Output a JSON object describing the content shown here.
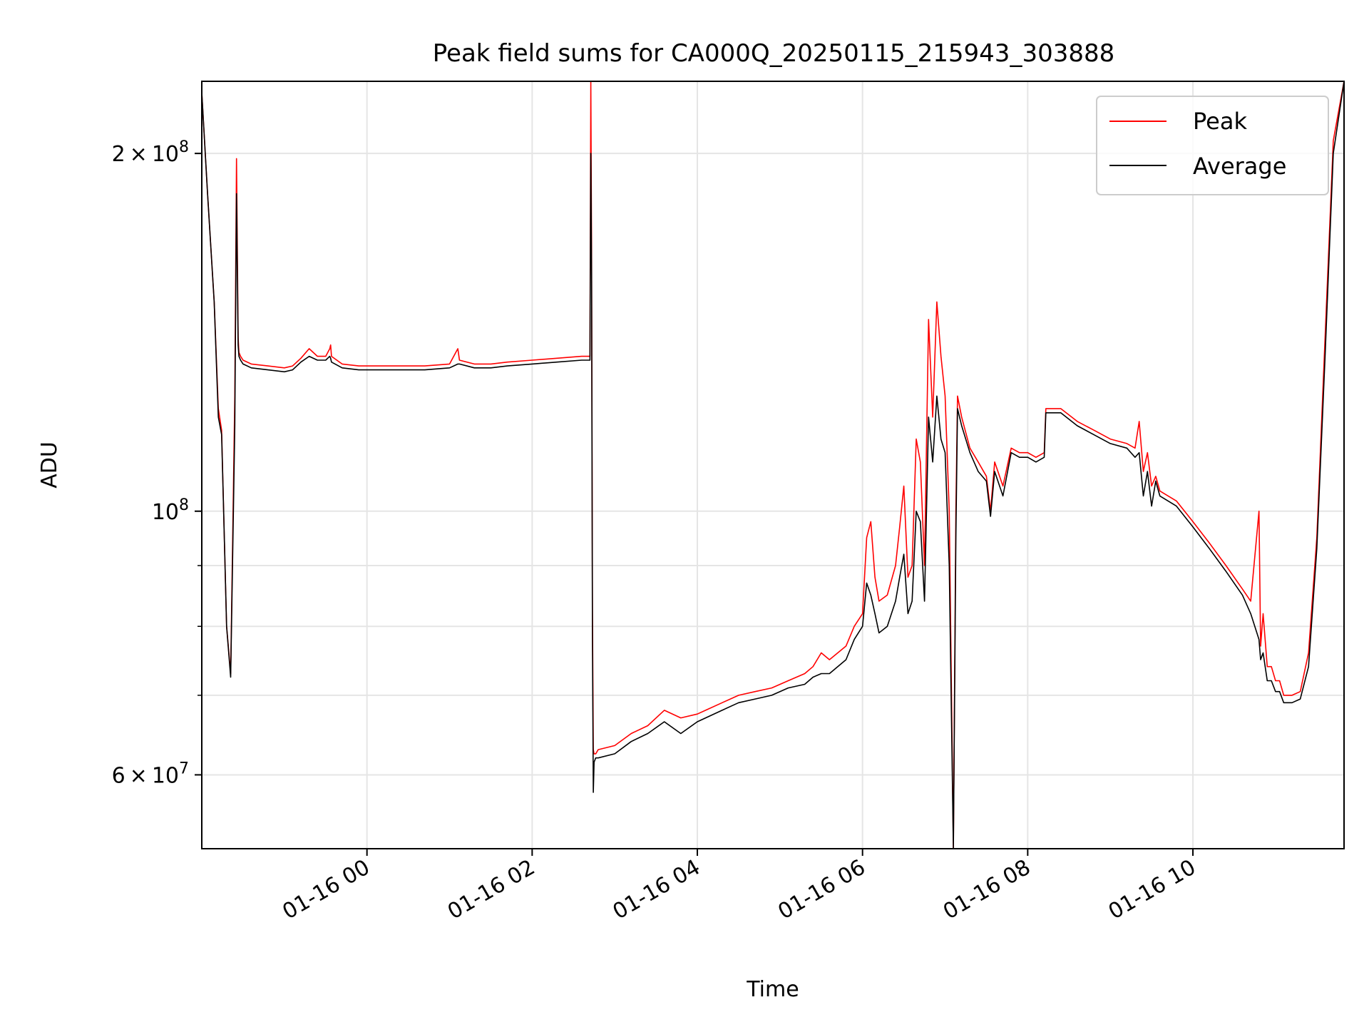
{
  "chart_data": {
    "type": "line",
    "title": "Peak field sums for CA000Q_20250115_215943_303888",
    "xlabel": "Time",
    "ylabel": "ADU",
    "x_unit": "hours relative to 2025-01-16 00:00",
    "xlim": [
      -2.0,
      11.83
    ],
    "ylim": [
      52000000,
      230000000
    ],
    "y_scale": "log",
    "grid": true,
    "legend": {
      "placement": "upper right"
    },
    "x_ticks": [
      {
        "value": 0,
        "label": "01-16 00"
      },
      {
        "value": 2,
        "label": "01-16 02"
      },
      {
        "value": 4,
        "label": "01-16 04"
      },
      {
        "value": 6,
        "label": "01-16 06"
      },
      {
        "value": 8,
        "label": "01-16 08"
      },
      {
        "value": 10,
        "label": "01-16 10"
      }
    ],
    "y_major_ticks": [
      {
        "value": 60000000,
        "mantissa": "6",
        "base": "10",
        "exp": "7"
      },
      {
        "value": 100000000,
        "mantissa": "",
        "base": "10",
        "exp": "8"
      },
      {
        "value": 200000000,
        "mantissa": "2",
        "base": "10",
        "exp": "8"
      }
    ],
    "y_minor_ticks": [
      70000000,
      80000000,
      90000000
    ],
    "series": [
      {
        "name": "Peak",
        "color": "#ff0000",
        "x": [
          -2.0,
          -1.93,
          -1.85,
          -1.8,
          -1.76,
          -1.74,
          -1.7,
          -1.65,
          -1.6,
          -1.58,
          -1.56,
          -1.55,
          -1.53,
          -1.5,
          -1.4,
          -1.2,
          -1.0,
          -0.9,
          -0.8,
          -0.7,
          -0.6,
          -0.5,
          -0.45,
          -0.44,
          -0.43,
          -0.3,
          -0.1,
          0.0,
          0.2,
          0.5,
          0.7,
          1.0,
          1.1,
          1.12,
          1.3,
          1.5,
          1.7,
          2.0,
          2.3,
          2.6,
          2.7,
          2.71,
          2.72,
          2.73,
          2.74,
          2.75,
          2.77,
          2.8,
          3.0,
          3.2,
          3.4,
          3.6,
          3.8,
          4.0,
          4.1,
          4.3,
          4.5,
          4.7,
          4.9,
          5.1,
          5.3,
          5.4,
          5.5,
          5.6,
          5.8,
          5.9,
          6.0,
          6.05,
          6.1,
          6.15,
          6.2,
          6.3,
          6.4,
          6.45,
          6.5,
          6.55,
          6.6,
          6.65,
          6.7,
          6.75,
          6.8,
          6.85,
          6.9,
          6.95,
          7.0,
          7.05,
          7.1,
          7.13,
          7.15,
          7.2,
          7.3,
          7.4,
          7.5,
          7.55,
          7.6,
          7.7,
          7.8,
          7.9,
          8.0,
          8.1,
          8.2,
          8.22,
          8.4,
          8.6,
          8.8,
          9.0,
          9.2,
          9.3,
          9.35,
          9.4,
          9.45,
          9.5,
          9.55,
          9.6,
          9.8,
          10.0,
          10.2,
          10.4,
          10.6,
          10.7,
          10.8,
          10.82,
          10.85,
          10.9,
          10.95,
          11.0,
          11.05,
          11.1,
          11.2,
          11.3,
          11.4,
          11.5,
          11.6,
          11.7,
          11.83
        ],
        "y": [
          225000000,
          185000000,
          150000000,
          122000000,
          117000000,
          103000000,
          80000000,
          73000000,
          125000000,
          198000000,
          140000000,
          136000000,
          135000000,
          134000000,
          133000000,
          132500000,
          132000000,
          132500000,
          134500000,
          137000000,
          135000000,
          135000000,
          137000000,
          138000000,
          135000000,
          133000000,
          132500000,
          132500000,
          132500000,
          132500000,
          132500000,
          133000000,
          137000000,
          134000000,
          133000000,
          133000000,
          133500000,
          134000000,
          134500000,
          135000000,
          135000000,
          230000000,
          165000000,
          82000000,
          63000000,
          62500000,
          62500000,
          63000000,
          63500000,
          65000000,
          66000000,
          68000000,
          67000000,
          67500000,
          68000000,
          69000000,
          70000000,
          70500000,
          71000000,
          72000000,
          73000000,
          74000000,
          76000000,
          75000000,
          77000000,
          80000000,
          82000000,
          95000000,
          98000000,
          88000000,
          84000000,
          85000000,
          90000000,
          97000000,
          105000000,
          88000000,
          90000000,
          115000000,
          110000000,
          90000000,
          145000000,
          120000000,
          150000000,
          135000000,
          125000000,
          100000000,
          52000000,
          100000000,
          125000000,
          120000000,
          113000000,
          110000000,
          107000000,
          100000000,
          110000000,
          105000000,
          113000000,
          112000000,
          112000000,
          111000000,
          112000000,
          122000000,
          122000000,
          119000000,
          117000000,
          115000000,
          114000000,
          113000000,
          119000000,
          108000000,
          112000000,
          105000000,
          107000000,
          104000000,
          102000000,
          98000000,
          94000000,
          90000000,
          86000000,
          84000000,
          100000000,
          77000000,
          82000000,
          74000000,
          74000000,
          72000000,
          72000000,
          70000000,
          70000000,
          70500000,
          76000000,
          95000000,
          140000000,
          205000000,
          230000000
        ]
      },
      {
        "name": "Average",
        "color": "#000000",
        "x": [
          -2.0,
          -1.93,
          -1.85,
          -1.8,
          -1.76,
          -1.74,
          -1.7,
          -1.65,
          -1.6,
          -1.58,
          -1.56,
          -1.55,
          -1.53,
          -1.5,
          -1.4,
          -1.2,
          -1.0,
          -0.9,
          -0.8,
          -0.7,
          -0.6,
          -0.5,
          -0.45,
          -0.44,
          -0.43,
          -0.3,
          -0.1,
          0.0,
          0.2,
          0.5,
          0.7,
          1.0,
          1.1,
          1.12,
          1.3,
          1.5,
          1.7,
          2.0,
          2.3,
          2.6,
          2.7,
          2.71,
          2.72,
          2.73,
          2.74,
          2.75,
          2.77,
          2.8,
          3.0,
          3.2,
          3.4,
          3.6,
          3.8,
          4.0,
          4.1,
          4.3,
          4.5,
          4.7,
          4.9,
          5.1,
          5.3,
          5.4,
          5.5,
          5.6,
          5.8,
          5.9,
          6.0,
          6.05,
          6.1,
          6.15,
          6.2,
          6.3,
          6.4,
          6.45,
          6.5,
          6.55,
          6.6,
          6.65,
          6.7,
          6.75,
          6.8,
          6.85,
          6.9,
          6.95,
          7.0,
          7.05,
          7.1,
          7.13,
          7.15,
          7.2,
          7.3,
          7.4,
          7.5,
          7.55,
          7.6,
          7.7,
          7.8,
          7.9,
          8.0,
          8.1,
          8.2,
          8.22,
          8.4,
          8.6,
          8.8,
          9.0,
          9.2,
          9.3,
          9.35,
          9.4,
          9.45,
          9.5,
          9.55,
          9.6,
          9.8,
          10.0,
          10.2,
          10.4,
          10.6,
          10.7,
          10.8,
          10.82,
          10.85,
          10.9,
          10.95,
          11.0,
          11.05,
          11.1,
          11.2,
          11.3,
          11.4,
          11.5,
          11.6,
          11.7,
          11.83
        ],
        "y": [
          225000000,
          185000000,
          150000000,
          120000000,
          116000000,
          103000000,
          80000000,
          72500000,
          118000000,
          185000000,
          138000000,
          135000000,
          134000000,
          133000000,
          132000000,
          131500000,
          131000000,
          131500000,
          133500000,
          135000000,
          134000000,
          134000000,
          135000000,
          134500000,
          133500000,
          132000000,
          131500000,
          131500000,
          131500000,
          131500000,
          131500000,
          132000000,
          133000000,
          133000000,
          132000000,
          132000000,
          132500000,
          133000000,
          133500000,
          134000000,
          134000000,
          200000000,
          158000000,
          78000000,
          58000000,
          61500000,
          62000000,
          62000000,
          62500000,
          64000000,
          65000000,
          66500000,
          65000000,
          66500000,
          67000000,
          68000000,
          69000000,
          69500000,
          70000000,
          71000000,
          71500000,
          72500000,
          73000000,
          73000000,
          75000000,
          78000000,
          80000000,
          87000000,
          85000000,
          82000000,
          79000000,
          80000000,
          84000000,
          88000000,
          92000000,
          82000000,
          84000000,
          100000000,
          98000000,
          84000000,
          120000000,
          110000000,
          125000000,
          115000000,
          112000000,
          90000000,
          52000000,
          95000000,
          122000000,
          118000000,
          112000000,
          108000000,
          106000000,
          99000000,
          108000000,
          103000000,
          112000000,
          111000000,
          111000000,
          110000000,
          111000000,
          121000000,
          121000000,
          118000000,
          116000000,
          114000000,
          113000000,
          111000000,
          112000000,
          103000000,
          108000000,
          101000000,
          106000000,
          103000000,
          101000000,
          97000000,
          93000000,
          89000000,
          85000000,
          82000000,
          78000000,
          75000000,
          76000000,
          72000000,
          72000000,
          70500000,
          70500000,
          69000000,
          69000000,
          69500000,
          74000000,
          93000000,
          135000000,
          200000000,
          230000000
        ]
      }
    ]
  }
}
